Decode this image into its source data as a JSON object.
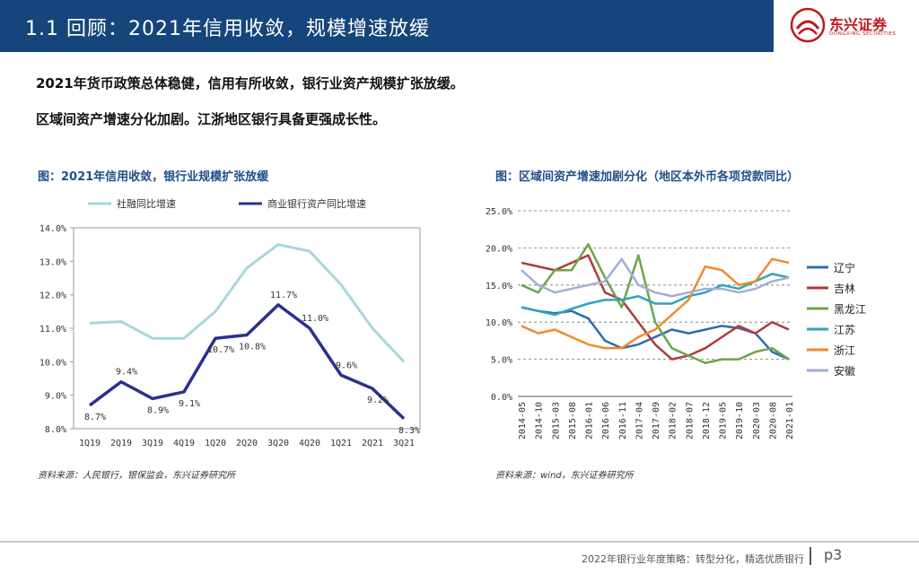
{
  "header": {
    "title": "1.1 回顾：2021年信用收敛，规模增速放缓"
  },
  "logo": {
    "name": "东兴证券",
    "subtitle": "DONGXING SECURITIES"
  },
  "bullets": [
    "2021年货币政策总体稳健，信用有所收敛，银行业资产规模扩张放缓。",
    "区域间资产增速分化加剧。江浙地区银行具备更强成长性。"
  ],
  "charts": {
    "left": {
      "title": "图：2021年信用收敛，银行业规模扩张放缓",
      "source": "资料来源：人民银行，银保监会，东兴证券研究所"
    },
    "right": {
      "title": "图：区域间资产增速加剧分化（地区本外币各项贷款同比）",
      "source": "资料来源：wind，东兴证券研究所"
    }
  },
  "footer": {
    "text": "2022年银行业年度策略：转型分化，精选优质银行",
    "page": "p3"
  },
  "colors": {
    "header": "#15457a",
    "accent": "#c0161c"
  },
  "chart_data": [
    {
      "type": "line",
      "title": "图：2021年信用收敛，银行业规模扩张放缓",
      "categories": [
        "1Q19",
        "2Q19",
        "3Q19",
        "4Q19",
        "1Q20",
        "2Q20",
        "3Q20",
        "4Q20",
        "1Q21",
        "2Q21",
        "3Q21"
      ],
      "ylim": [
        8.0,
        14.0
      ],
      "yticks": [
        "8.0%",
        "9.0%",
        "10.0%",
        "11.0%",
        "12.0%",
        "13.0%",
        "14.0%"
      ],
      "series": [
        {
          "name": "社融同比增速",
          "color": "#a9d6dc",
          "values": [
            11.15,
            11.2,
            10.7,
            10.7,
            11.5,
            12.8,
            13.5,
            13.3,
            12.3,
            11.0,
            10.0
          ]
        },
        {
          "name": "商业银行资产同比增速",
          "color": "#2b2f8f",
          "values": [
            8.7,
            9.4,
            8.9,
            9.1,
            10.7,
            10.8,
            11.7,
            11.0,
            9.6,
            9.2,
            8.3
          ],
          "labels": [
            "8.7%",
            "9.4%",
            "8.9%",
            "9.1%",
            "10.7%",
            "10.8%",
            "11.7%",
            "11.0%",
            "9.6%",
            "9.2%",
            "8.3%"
          ]
        }
      ]
    },
    {
      "type": "line",
      "title": "图：区域间资产增速加剧分化（地区本外币各项贷款同比）",
      "categories": [
        "2014-05",
        "2014-10",
        "2015-03",
        "2015-08",
        "2016-01",
        "2016-06",
        "2016-11",
        "2017-04",
        "2017-09",
        "2018-02",
        "2018-07",
        "2018-12",
        "2019-05",
        "2019-10",
        "2020-03",
        "2020-08",
        "2021-01"
      ],
      "ylim": [
        0,
        25
      ],
      "yticks": [
        "0.0%",
        "5.0%",
        "10.0%",
        "15.0%",
        "20.0%",
        "25.0%"
      ],
      "series": [
        {
          "name": "辽宁",
          "color": "#2e6bb0",
          "values": [
            12,
            11.5,
            11.2,
            11.5,
            10.5,
            7.5,
            6.5,
            7,
            8,
            9,
            8.5,
            9,
            9.5,
            9.2,
            8.5,
            6,
            5
          ]
        },
        {
          "name": "吉林",
          "color": "#b23a3a",
          "values": [
            18,
            17.5,
            17,
            18,
            19,
            14,
            13,
            10,
            7,
            5,
            5.5,
            6.5,
            8,
            9.5,
            8.5,
            10,
            9
          ]
        },
        {
          "name": "黑龙江",
          "color": "#6aa64a",
          "values": [
            15,
            14,
            17,
            17,
            20.5,
            16,
            12,
            19,
            10,
            6.5,
            5.5,
            4.5,
            5,
            5,
            6,
            6.5,
            5
          ]
        },
        {
          "name": "江苏",
          "color": "#2fa4b8",
          "values": [
            12,
            11.5,
            11,
            11.8,
            12.5,
            13,
            13,
            13.5,
            12.5,
            12.5,
            13.5,
            14,
            15,
            14.5,
            15.5,
            16.5,
            16
          ]
        },
        {
          "name": "浙江",
          "color": "#ef8a2e",
          "values": [
            9.5,
            8.5,
            9,
            8,
            7,
            6.5,
            6.5,
            8,
            9,
            11,
            13,
            17.5,
            17,
            15,
            15.5,
            18.5,
            18
          ]
        },
        {
          "name": "安徽",
          "color": "#a3aed6",
          "values": [
            17,
            15,
            14,
            14.5,
            15,
            15.5,
            18.5,
            15,
            14,
            13.5,
            14,
            14.5,
            14.5,
            14,
            14.5,
            15.5,
            16
          ]
        }
      ]
    }
  ]
}
